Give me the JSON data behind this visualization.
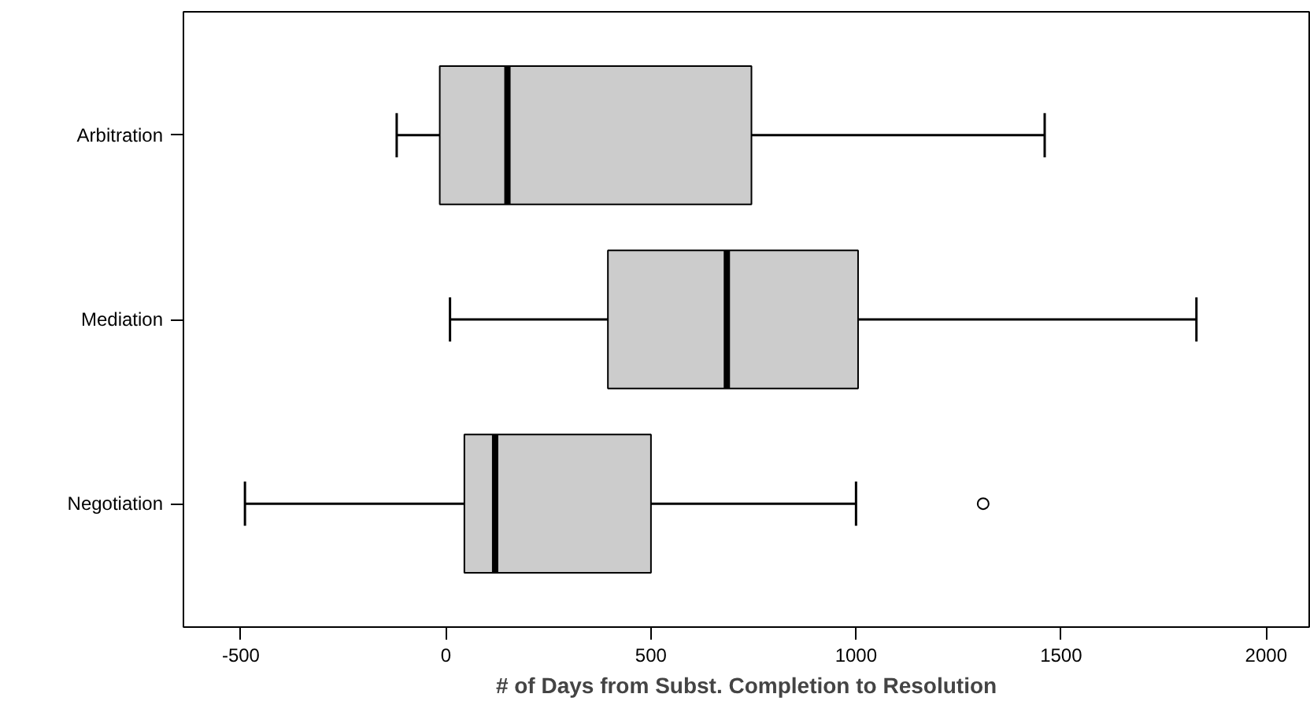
{
  "chart_data": {
    "type": "box",
    "orientation": "horizontal",
    "xlabel": "# of Days from Subst. Completion to Resolution",
    "categories": [
      "Arbitration",
      "Mediation",
      "Negotiation"
    ],
    "color": "#cccccc",
    "boxes": [
      {
        "low": -120,
        "q1": -15,
        "median": 150,
        "q3": 745,
        "high": 1460
      },
      {
        "low": 10,
        "q1": 395,
        "median": 685,
        "q3": 1005,
        "high": 1830
      },
      {
        "low": -490,
        "q1": 45,
        "median": 120,
        "q3": 500,
        "high": 1000,
        "outliers": [
          1310
        ]
      }
    ],
    "xlim": [
      -640,
      2105
    ],
    "xticks": [
      -500,
      0,
      500,
      1000,
      1500,
      2000
    ]
  }
}
